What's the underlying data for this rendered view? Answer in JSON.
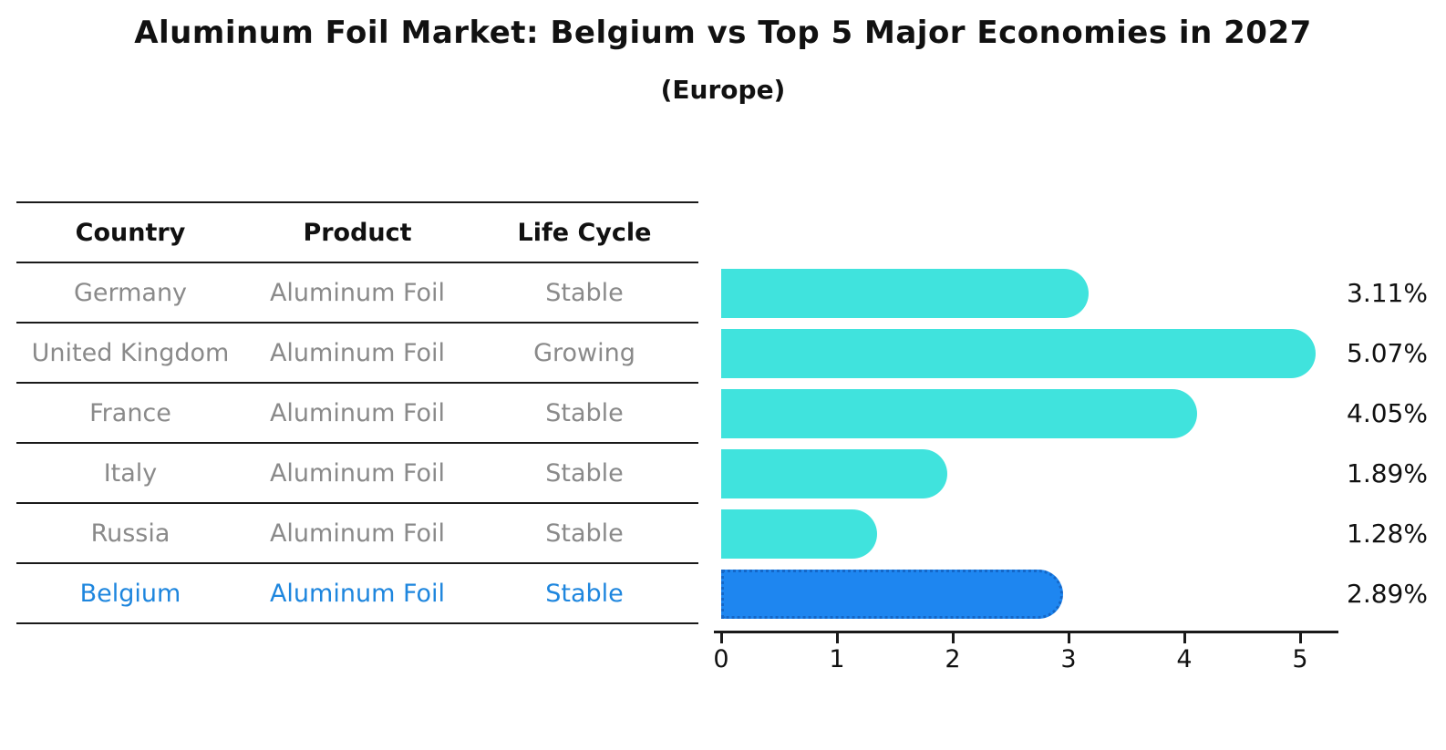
{
  "title": "Aluminum Foil Market: Belgium vs Top 5 Major Economies in 2027",
  "subtitle": "(Europe)",
  "table": {
    "headers": [
      "Country",
      "Product",
      "Life Cycle"
    ],
    "rows": [
      {
        "country": "Germany",
        "product": "Aluminum Foil",
        "life_cycle": "Stable"
      },
      {
        "country": "United Kingdom",
        "product": "Aluminum Foil",
        "life_cycle": "Growing"
      },
      {
        "country": "France",
        "product": "Aluminum Foil",
        "life_cycle": "Stable"
      },
      {
        "country": "Italy",
        "product": "Aluminum Foil",
        "life_cycle": "Stable"
      },
      {
        "country": "Russia",
        "product": "Aluminum Foil",
        "life_cycle": "Stable"
      },
      {
        "country": "Belgium",
        "product": "Aluminum Foil",
        "life_cycle": "Stable"
      }
    ]
  },
  "chart_data": {
    "type": "bar",
    "orientation": "horizontal",
    "title": "Aluminum Foil Market: Belgium vs Top 5 Major Economies in 2027",
    "subtitle": "(Europe)",
    "categories": [
      "Germany",
      "United Kingdom",
      "France",
      "Italy",
      "Russia",
      "Belgium"
    ],
    "values": [
      3.11,
      5.07,
      4.05,
      1.89,
      1.28,
      2.89
    ],
    "value_labels": [
      "3.11%",
      "5.07%",
      "4.05%",
      "1.89%",
      "1.28%",
      "2.89%"
    ],
    "x_ticks": [
      0,
      1,
      2,
      3,
      4,
      5
    ],
    "xlim": [
      0,
      5.4
    ],
    "grid": false,
    "legend": false,
    "highlight_index": 5,
    "bar_color": "#40E3DD",
    "highlight_bar_color": "#1E86F0",
    "highlight_bar_border": "#1467C8"
  },
  "colors": {
    "background": "#ffffff",
    "title_text": "#111111",
    "row_text": "#8a8a8a",
    "highlight_text": "#1E86DE",
    "table_line": "#1a1a1a",
    "axis": "#1a1a1a",
    "value_label_text": "#111111"
  }
}
